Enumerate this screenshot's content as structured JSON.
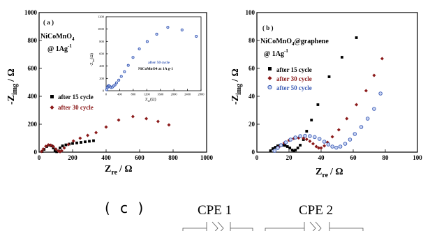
{
  "colors": {
    "axis": "#000000",
    "after_15": "#000000",
    "after_30": "#8b1a1a",
    "after_50": "#3a5bb5"
  },
  "panel_c_label": "( c )",
  "circuit": {
    "cpe1": "CPE 1",
    "cpe2": "CPE 2"
  },
  "chart_data": [
    {
      "type": "scatter",
      "panel": "( a )",
      "material_line1": "NiCoMnO",
      "material_sub": "4",
      "rate_line": "@ 1Ag",
      "rate_sup": "-1",
      "xlabel_main": "Z",
      "xlabel_sub": "re",
      "xlabel_tail": "/ Ω",
      "ylabel_main": "-Z",
      "ylabel_sub": "img",
      "ylabel_tail": "/ Ω",
      "xlim": [
        0,
        1000
      ],
      "ylim": [
        0,
        1000
      ],
      "xticks": [
        "0",
        "200",
        "400",
        "600",
        "800",
        "1000"
      ],
      "yticks": [
        "0",
        "200",
        "400",
        "600",
        "800",
        "1000"
      ],
      "legend": {
        "placement": "center-left",
        "entries": [
          "after 15 cycle",
          "after 30 cycle"
        ]
      },
      "series": [
        {
          "name": "after 15 cycle",
          "marker": "square",
          "color_key": "after_15",
          "x": [
            18,
            30,
            45,
            60,
            75,
            85,
            95,
            105,
            115,
            125,
            140,
            160,
            180,
            200,
            225,
            250,
            275,
            300,
            325
          ],
          "y": [
            5,
            20,
            40,
            50,
            45,
            30,
            12,
            3,
            8,
            30,
            45,
            52,
            58,
            62,
            66,
            70,
            74,
            78,
            82
          ]
        },
        {
          "name": "after 30 cycle",
          "marker": "diamond",
          "color_key": "after_30",
          "x": [
            15,
            25,
            40,
            55,
            70,
            85,
            100,
            115,
            125,
            135,
            150,
            175,
            205,
            245,
            290,
            340,
            400,
            475,
            560,
            640,
            710,
            775
          ],
          "y": [
            5,
            22,
            42,
            52,
            50,
            40,
            22,
            8,
            3,
            10,
            30,
            55,
            80,
            100,
            120,
            140,
            180,
            230,
            255,
            240,
            220,
            195
          ]
        }
      ],
      "inset": {
        "xlabel_main": "Z",
        "xlabel_sub": "re",
        "xlabel_tail": "(Ω)",
        "ylabel_main": "-Z",
        "ylabel_sub": "im",
        "ylabel_tail": "(Ω)",
        "xlim": [
          0,
          3000
        ],
        "ylim": [
          0,
          1400
        ],
        "xticks": [
          "0",
          "400",
          "800",
          "1200",
          "1600",
          "2000",
          "2400",
          "2800"
        ],
        "yticks": [
          "0",
          "200",
          "400",
          "600",
          "800",
          "1000",
          "1200"
        ],
        "note_line1": "after 50 cycle",
        "note_line2": "NiCoMnO4 at 1A g-1",
        "series": {
          "name": "after 50 cycle",
          "marker": "circle",
          "color_key": "after_50",
          "x": [
            20,
            40,
            60,
            80,
            100,
            130,
            160,
            200,
            240,
            280,
            330,
            400,
            480,
            580,
            700,
            850,
            1050,
            1300,
            1600,
            1950,
            2400,
            2850
          ],
          "y": [
            20,
            60,
            85,
            95,
            90,
            75,
            60,
            70,
            90,
            110,
            150,
            200,
            270,
            360,
            480,
            630,
            790,
            930,
            1070,
            1200,
            1150,
            1030
          ]
        }
      }
    },
    {
      "type": "scatter",
      "panel": "( b )",
      "material_line1": "NiCoMnO",
      "material_sub": "4",
      "material_tail": "@graphene",
      "rate_line": "@ 1Ag",
      "rate_sup": "-1",
      "xlabel_main": "Z",
      "xlabel_sub": "re",
      "xlabel_tail": "/ Ω",
      "ylabel_main": "-Z",
      "ylabel_sub": "img",
      "ylabel_tail": "/ Ω",
      "xlim": [
        0,
        100
      ],
      "ylim": [
        0,
        100
      ],
      "xticks": [
        "0",
        "20",
        "40",
        "60",
        "80",
        "100"
      ],
      "yticks": [
        "0",
        "20",
        "40",
        "60",
        "80",
        "100"
      ],
      "legend": {
        "placement": "center-left",
        "entries": [
          "after 15 cycle",
          "after 30 cycle",
          "after 50 cycle"
        ]
      },
      "series": [
        {
          "name": "after 15 cycle",
          "marker": "square",
          "color_key": "after_15",
          "x": [
            8.5,
            10,
            11.5,
            13,
            14.5,
            16,
            17.5,
            19,
            20.5,
            22,
            23,
            24,
            25.5,
            27,
            29,
            31,
            34,
            38,
            45,
            53,
            62
          ],
          "y": [
            1,
            2.5,
            3.5,
            4.5,
            5,
            5,
            4.8,
            4,
            3,
            1.5,
            0.8,
            1.5,
            3,
            5,
            9,
            15,
            23,
            34,
            54,
            68,
            82
          ]
        },
        {
          "name": "after 30 cycle",
          "marker": "diamond",
          "color_key": "after_30",
          "x": [
            11,
            14,
            17,
            20,
            23,
            26,
            29,
            31,
            33,
            35,
            37,
            38.5,
            40,
            42,
            44,
            47,
            51,
            56,
            62,
            68,
            73,
            78
          ],
          "y": [
            1,
            4,
            6.5,
            8.5,
            9.8,
            10.2,
            10,
            9.2,
            7.8,
            6,
            4,
            3,
            3,
            4.5,
            7,
            11,
            16,
            24,
            34,
            44,
            55,
            67
          ]
        },
        {
          "name": "after 50 cycle",
          "marker": "circle",
          "color_key": "after_50",
          "x": [
            11,
            13,
            15,
            18,
            21,
            24,
            27,
            30,
            33,
            36,
            39,
            42,
            44.5,
            47,
            49.5,
            52,
            55,
            58,
            61,
            65,
            69,
            73,
            77
          ],
          "y": [
            1,
            3,
            5,
            7,
            9,
            10.5,
            11.5,
            11.7,
            11.5,
            10.8,
            9.5,
            7.5,
            5.5,
            4,
            3.2,
            4,
            6,
            9,
            13,
            18,
            24,
            31,
            42
          ]
        }
      ]
    }
  ]
}
